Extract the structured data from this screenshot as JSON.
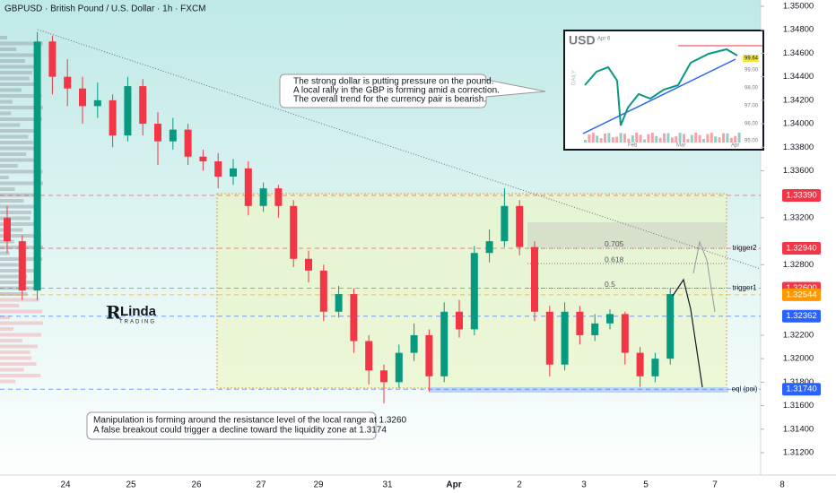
{
  "chart_data": {
    "type": "candlestick",
    "title": "GBPUSD · British Pound / U.S. Dollar · 1h · FXCM",
    "x_labels": [
      "24",
      "25",
      "26",
      "27",
      "29",
      "31",
      "Apr",
      "2",
      "3",
      "5",
      "7",
      "8"
    ],
    "open": [
      1.332,
      1.33,
      1.3258,
      1.347,
      1.344,
      1.343,
      1.3415,
      1.342,
      1.339,
      1.3432,
      1.34,
      1.3385,
      1.3395,
      1.3372,
      1.3368,
      1.3355,
      1.3362,
      1.333,
      1.3345,
      1.333,
      1.3285,
      1.3275,
      1.324,
      1.3255,
      1.3215,
      1.319,
      1.318,
      1.3205,
      1.322,
      1.3185,
      1.324,
      1.3225,
      1.329,
      1.33,
      1.333,
      1.3295,
      1.324,
      1.3195,
      1.324,
      1.322,
      1.323,
      1.3238,
      1.3205,
      1.3185,
      1.32
    ],
    "high": [
      1.333,
      1.3305,
      1.3478,
      1.3475,
      1.3455,
      1.344,
      1.3435,
      1.3425,
      1.344,
      1.3438,
      1.341,
      1.3405,
      1.34,
      1.3378,
      1.3375,
      1.337,
      1.3368,
      1.335,
      1.3348,
      1.3335,
      1.3292,
      1.328,
      1.3262,
      1.326,
      1.322,
      1.3195,
      1.3212,
      1.323,
      1.3225,
      1.3248,
      1.325,
      1.3296,
      1.331,
      1.3345,
      1.3335,
      1.33,
      1.3245,
      1.3248,
      1.3245,
      1.3238,
      1.3242,
      1.324,
      1.321,
      1.3205,
      1.326
    ],
    "low": [
      1.329,
      1.325,
      1.325,
      1.3425,
      1.3415,
      1.34,
      1.3405,
      1.338,
      1.3385,
      1.339,
      1.3365,
      1.3378,
      1.3365,
      1.336,
      1.3345,
      1.3348,
      1.3322,
      1.3325,
      1.332,
      1.3278,
      1.3265,
      1.3232,
      1.3235,
      1.3205,
      1.3178,
      1.3162,
      1.3175,
      1.3198,
      1.3172,
      1.318,
      1.3218,
      1.322,
      1.3282,
      1.3295,
      1.3288,
      1.3232,
      1.3185,
      1.319,
      1.3212,
      1.3215,
      1.3225,
      1.3195,
      1.3176,
      1.318,
      1.3195
    ],
    "close": [
      1.33,
      1.3258,
      1.347,
      1.344,
      1.343,
      1.3415,
      1.342,
      1.339,
      1.3432,
      1.34,
      1.3385,
      1.3395,
      1.3372,
      1.3368,
      1.3355,
      1.3362,
      1.333,
      1.3345,
      1.333,
      1.3285,
      1.3275,
      1.324,
      1.3255,
      1.3215,
      1.319,
      1.318,
      1.3205,
      1.322,
      1.3185,
      1.324,
      1.3225,
      1.329,
      1.33,
      1.333,
      1.3295,
      1.324,
      1.3195,
      1.324,
      1.322,
      1.323,
      1.3238,
      1.3205,
      1.3185,
      1.32,
      1.3255
    ],
    "up_color": "#089981",
    "down_color": "#f23645",
    "ylim": [
      1.35,
      1.312
    ],
    "yticks": [
      {
        "value": 1.35,
        "label": "1.35000"
      },
      {
        "value": 1.348,
        "label": "1.34800"
      },
      {
        "value": 1.346,
        "label": "1.34600"
      },
      {
        "value": 1.344,
        "label": "1.34400"
      },
      {
        "value": 1.342,
        "label": "1.34200"
      },
      {
        "value": 1.34,
        "label": "1.34000"
      },
      {
        "value": 1.338,
        "label": "1.33800"
      },
      {
        "value": 1.336,
        "label": "1.33600"
      },
      {
        "value": 1.332,
        "label": "1.33200"
      },
      {
        "value": 1.328,
        "label": "1.32800"
      },
      {
        "value": 1.322,
        "label": "1.32200"
      },
      {
        "value": 1.32,
        "label": "1.32000"
      },
      {
        "value": 1.318,
        "label": "1.31800"
      },
      {
        "value": 1.316,
        "label": "1.31600"
      },
      {
        "value": 1.314,
        "label": "1.31400"
      },
      {
        "value": 1.312,
        "label": "1.31200"
      }
    ],
    "price_tags": [
      {
        "value": 1.3339,
        "label": "1.33390",
        "color": "#f23645"
      },
      {
        "value": 1.3294,
        "label": "1.32940",
        "color": "#f23645",
        "name": "trigger2"
      },
      {
        "value": 1.326,
        "label": "1.32600",
        "color": "#f23645",
        "name": "trigger1"
      },
      {
        "value": 1.32544,
        "label": "1.32544",
        "color": "#ff9800"
      },
      {
        "value": 1.32362,
        "label": "1.32362",
        "color": "#2962ff"
      },
      {
        "value": 1.3174,
        "label": "1.31740",
        "color": "#2962ff",
        "name": "eql (poi)"
      }
    ],
    "fib_levels": [
      {
        "value": 1.3294,
        "label": "0.705"
      },
      {
        "value": 1.3281,
        "label": "0.618"
      },
      {
        "value": 1.326,
        "label": "0.5"
      }
    ],
    "annotations": [
      "The strong dollar is putting pressure on the pound.",
      "A local rally in the GBP is forming amid a correction.",
      "The overall trend for the currency pair is bearish.",
      "Manipulation is forming around the resistance level of the local range at 1.3260",
      "A false breakout could trigger a decline toward the liquidity zone at 1.3174"
    ],
    "logo": [
      "Linda",
      "TRADING"
    ],
    "inset": {
      "symbol": "USD",
      "date": "Apr 6",
      "side": "DAILY",
      "yticks": [
        "99.00",
        "98.00",
        "97.00",
        "96.00",
        "95.00"
      ],
      "months": [
        "Feb",
        "Mar",
        "Apr"
      ],
      "tag": "99.64"
    }
  }
}
